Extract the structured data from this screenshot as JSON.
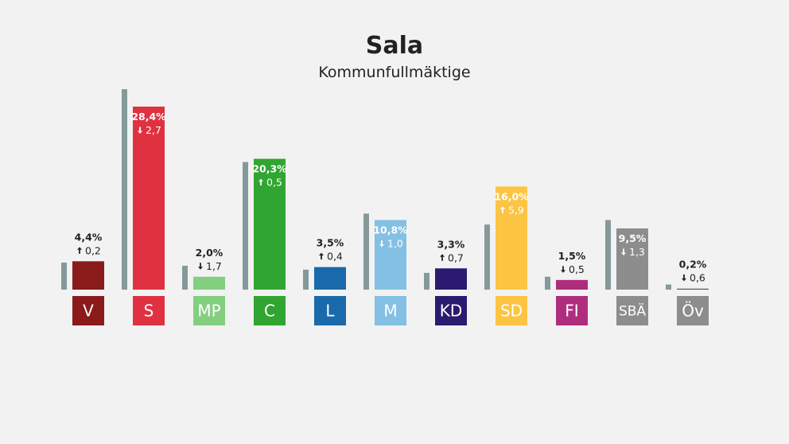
{
  "header": {
    "title": "Sala",
    "subtitle": "Kommunfullmäktige"
  },
  "chart_data": {
    "type": "bar",
    "title": "Sala",
    "subtitle": "Kommunfullmäktige",
    "categories": [
      "V",
      "S",
      "MP",
      "C",
      "L",
      "M",
      "KD",
      "SD",
      "FI",
      "SBÄ",
      "Öv"
    ],
    "series": [
      {
        "values": [
          4.4,
          28.4,
          2.0,
          20.3,
          3.5,
          10.8,
          3.3,
          16.0,
          1.5,
          9.5,
          0.2
        ],
        "labels": [
          "4,4%",
          "28,4%",
          "2,0%",
          "20,3%",
          "3,5%",
          "10,8%",
          "3,3%",
          "16,0%",
          "1,5%",
          "9,5%",
          "0,2%"
        ]
      },
      {
        "values": [
          4.2,
          31.1,
          3.7,
          19.8,
          3.1,
          11.8,
          2.6,
          10.1,
          2.0,
          10.8,
          0.8
        ]
      }
    ],
    "changes": [
      "0,2",
      "2,7",
      "1,7",
      "0,5",
      "0,4",
      "1,0",
      "0,7",
      "5,9",
      "0,5",
      "1,3",
      "0,6"
    ],
    "change_direction": [
      "up",
      "down",
      "down",
      "up",
      "up",
      "down",
      "up",
      "up",
      "down",
      "down",
      "down"
    ],
    "colors": [
      "#8b1a1a",
      "#e03141",
      "#83cf80",
      "#31a532",
      "#1a6aab",
      "#83c0e4",
      "#2b1b70",
      "#fcc443",
      "#b02d7e",
      "#8d8d8d",
      "#8d8d8d"
    ],
    "previous_color": "#86999a",
    "ylim": [
      0,
      32
    ],
    "grid": false,
    "legend": "none"
  }
}
